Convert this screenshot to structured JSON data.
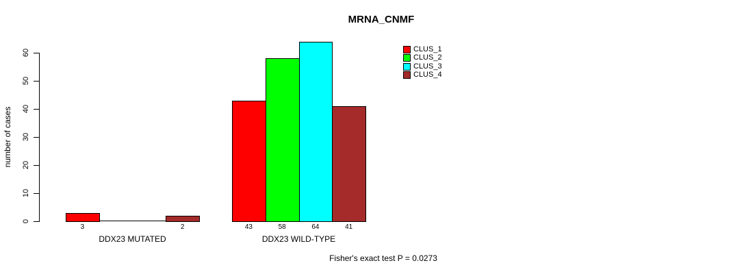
{
  "chart_data": {
    "type": "bar",
    "grouping": "grouped",
    "title": "MRNA_CNMF",
    "xlabel": "",
    "ylabel": "number of cases",
    "categories": [
      "DDX23 MUTATED",
      "DDX23 WILD-TYPE"
    ],
    "series": [
      {
        "name": "CLUS_1",
        "color": "#FF0000",
        "values": [
          3,
          43
        ]
      },
      {
        "name": "CLUS_2",
        "color": "#00FF00",
        "values": [
          0,
          58
        ]
      },
      {
        "name": "CLUS_3",
        "color": "#00FFFF",
        "values": [
          0,
          64
        ]
      },
      {
        "name": "CLUS_4",
        "color": "#A52A2A",
        "values": [
          2,
          41
        ]
      }
    ],
    "bar_value_labels_shown_for_nonzero_only": true,
    "yticks": [
      0,
      10,
      20,
      30,
      40,
      50,
      60
    ],
    "ylim": [
      0,
      65
    ],
    "grid": false,
    "legend_position": "top-right-inside",
    "annotation": "Fisher's exact test P = 0.0273"
  }
}
